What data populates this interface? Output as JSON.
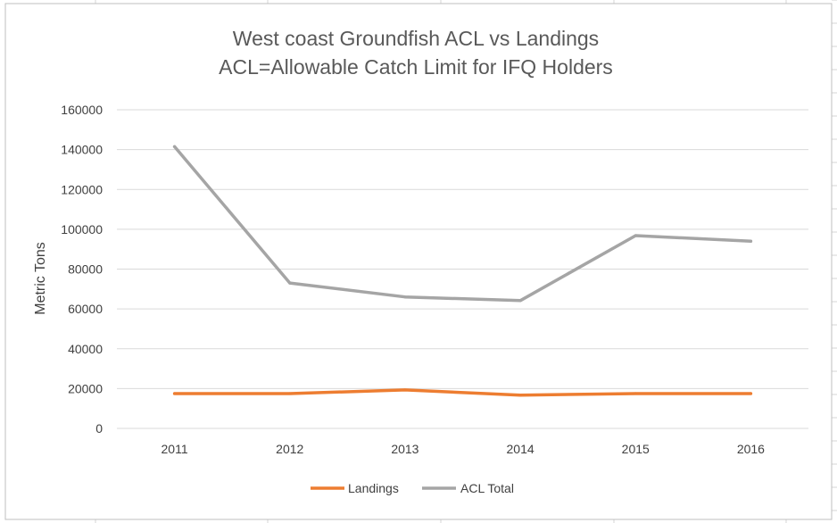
{
  "colors": {
    "landings": "#ED7D31",
    "acl_total": "#A5A5A5",
    "gridline": "#D9D9D9",
    "sheet_grid": "#D4D4D4",
    "chart_border": "#BFBFBF"
  },
  "chart_data": {
    "type": "line",
    "title": "West coast Groundfish ACL vs Landings",
    "subtitle": "ACL=Allowable Catch Limit for IFQ Holders",
    "xlabel": "",
    "ylabel": "Metric Tons",
    "categories": [
      "2011",
      "2012",
      "2013",
      "2014",
      "2015",
      "2016"
    ],
    "ylim": [
      0,
      160000
    ],
    "yticks": [
      "0",
      "20000",
      "40000",
      "60000",
      "80000",
      "100000",
      "120000",
      "140000",
      "160000"
    ],
    "grid": true,
    "legend_position": "bottom",
    "series": [
      {
        "name": "Landings",
        "color": "#ED7D31",
        "values": [
          17500,
          17500,
          19300,
          16700,
          17500,
          17500
        ]
      },
      {
        "name": "ACL Total",
        "color": "#A5A5A5",
        "values": [
          141500,
          73000,
          66000,
          64200,
          96800,
          94000
        ]
      }
    ]
  }
}
